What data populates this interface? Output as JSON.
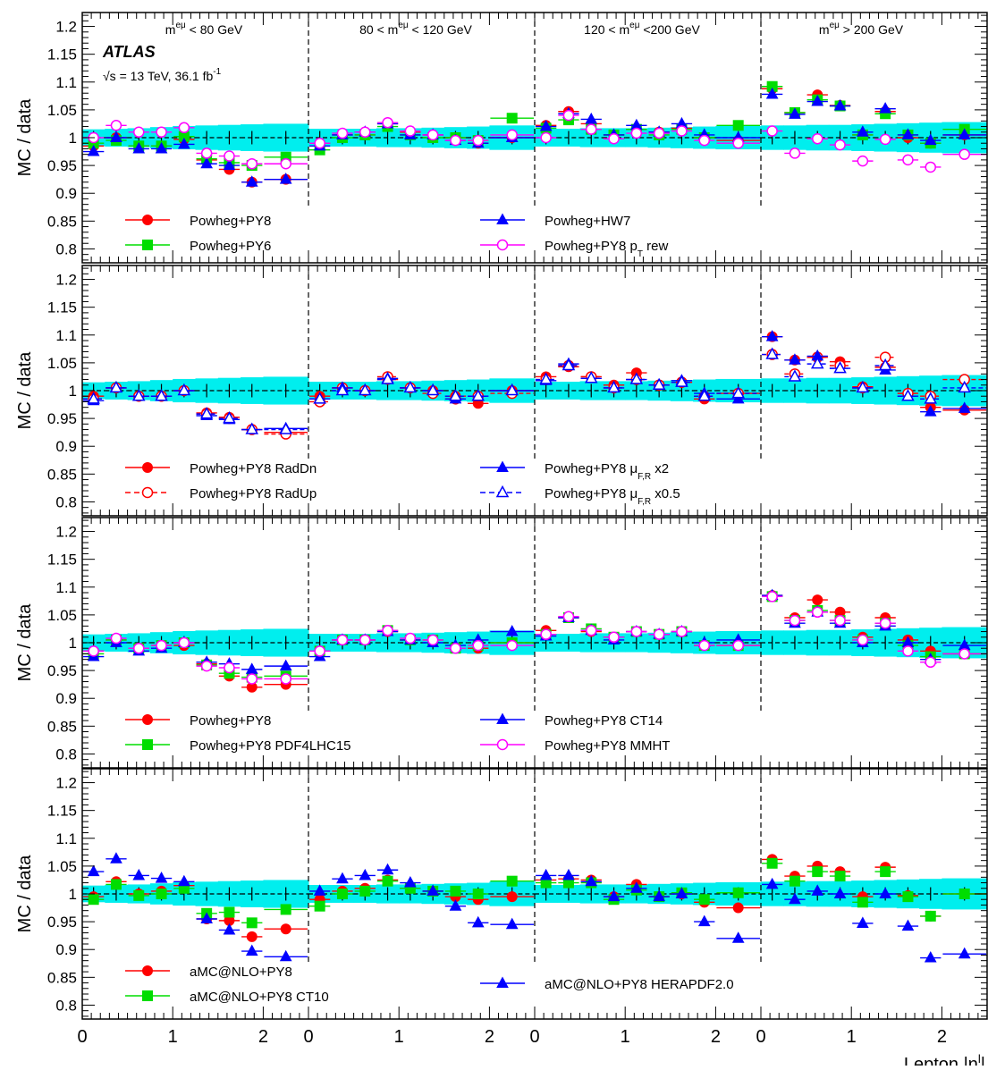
{
  "chart_data": {
    "type": "scatter",
    "ylabel": "MC / data",
    "xlabel": "Lepton |η",
    "xlabel_sup": "l",
    "xlabel_close": "|",
    "ylim": [
      0.775,
      1.225
    ],
    "yticks": [
      "0.8",
      "0.85",
      "0.9",
      "0.95",
      "1",
      "1.05",
      "1.1",
      "1.15",
      "1.2"
    ],
    "x_tick_labels": [
      "0",
      "1",
      "2"
    ],
    "eta_bins": [
      0,
      0.25,
      0.5,
      0.75,
      1.0,
      1.25,
      1.5,
      1.75,
      2.0,
      2.5
    ],
    "bins_per_region": 9,
    "n_regions": 4,
    "atlas_label": "ATLAS",
    "energy_label": "√s = 13 TeV, 36.1 fb",
    "energy_sup": "-1",
    "mass_regions": [
      {
        "pre": "m",
        "sup": "eμ",
        "post": " < 80 GeV"
      },
      {
        "pre": "80 < m",
        "sup": "eμ",
        "post": " < 120 GeV"
      },
      {
        "pre": "120 < m",
        "sup": "eμ",
        "post": " <200 GeV"
      },
      {
        "pre": "m",
        "sup": "eμ",
        "post": " > 200 GeV"
      }
    ],
    "uncertainty_band": [
      0.015,
      0.016,
      0.017,
      0.019,
      0.021,
      0.022,
      0.023,
      0.024,
      0.025,
      0.016,
      0.016,
      0.016,
      0.017,
      0.017,
      0.018,
      0.019,
      0.02,
      0.022,
      0.016,
      0.016,
      0.017,
      0.017,
      0.017,
      0.018,
      0.019,
      0.02,
      0.021,
      0.022,
      0.022,
      0.023,
      0.023,
      0.024,
      0.025,
      0.026,
      0.027,
      0.028
    ],
    "panels": [
      {
        "series": [
          {
            "name": "Powheg+PY8",
            "color": "#ff0000",
            "marker": "circle-filled",
            "values": [
              0.985,
              1.0,
              0.985,
              0.985,
              0.997,
              0.96,
              0.943,
              0.92,
              0.925,
              0.99,
              1.005,
              1.005,
              1.025,
              1.01,
              1.005,
              1.0,
              0.99,
              1.0,
              1.022,
              1.047,
              1.025,
              1.005,
              1.015,
              1.01,
              1.017,
              1.0,
              0.995,
              1.088,
              1.045,
              1.077,
              1.058,
              1.005,
              1.047,
              1.0,
              0.99,
              1.005
            ]
          },
          {
            "name": "Powheg+PY6",
            "color": "#00dd00",
            "marker": "square-filled",
            "values": [
              0.99,
              0.995,
              0.985,
              0.985,
              1.002,
              0.962,
              0.955,
              0.95,
              0.965,
              0.978,
              1.0,
              1.005,
              1.02,
              1.005,
              1.0,
              1.0,
              0.995,
              1.035,
              1.017,
              1.032,
              1.015,
              1.005,
              1.015,
              1.005,
              1.015,
              1.0,
              1.022,
              1.092,
              1.045,
              1.068,
              1.057,
              1.005,
              1.043,
              1.005,
              0.99,
              1.015
            ]
          },
          {
            "name": "Powheg+HW7",
            "color": "#0000ff",
            "marker": "triangle-filled",
            "values": [
              0.975,
              1.0,
              0.98,
              0.98,
              0.988,
              0.953,
              0.95,
              0.92,
              0.925,
              0.985,
              1.005,
              1.01,
              1.025,
              1.005,
              1.005,
              0.995,
              0.99,
              1.0,
              1.02,
              1.043,
              1.033,
              1.005,
              1.022,
              1.01,
              1.025,
              1.005,
              1.0,
              1.078,
              1.042,
              1.065,
              1.057,
              1.01,
              1.052,
              1.005,
              0.995,
              1.005
            ]
          },
          {
            "name": "Powheg+PY8 p",
            "name_sub": "T",
            "name_post": " rew",
            "color": "#ff00ff",
            "marker": "circle-open",
            "values": [
              1.0,
              1.022,
              1.01,
              1.01,
              1.018,
              0.972,
              0.967,
              0.953,
              0.953,
              0.99,
              1.008,
              1.01,
              1.027,
              1.012,
              1.005,
              0.995,
              0.995,
              1.005,
              1.0,
              1.04,
              1.015,
              0.998,
              1.008,
              1.008,
              1.012,
              0.995,
              0.99,
              1.012,
              0.972,
              0.998,
              0.987,
              0.958,
              0.997,
              0.96,
              0.947,
              0.97
            ]
          }
        ],
        "legend": [
          {
            "series": 0,
            "col": 0,
            "row": 0
          },
          {
            "series": 1,
            "col": 0,
            "row": 1
          },
          {
            "series": 2,
            "col": 1,
            "row": 0
          },
          {
            "series": 3,
            "col": 1,
            "row": 1
          }
        ]
      },
      {
        "series": [
          {
            "name": "Powheg+PY8 RadDn",
            "color": "#ff0000",
            "marker": "circle-filled",
            "values": [
              0.99,
              1.005,
              0.99,
              0.99,
              1.0,
              0.96,
              0.952,
              0.93,
              0.925,
              0.99,
              1.005,
              1.0,
              1.02,
              1.005,
              1.0,
              0.99,
              0.977,
              1.0,
              1.025,
              1.043,
              1.025,
              1.01,
              1.032,
              1.01,
              1.015,
              0.985,
              0.995,
              1.097,
              1.055,
              1.06,
              1.052,
              1.007,
              1.042,
              0.995,
              0.97,
              0.965
            ]
          },
          {
            "name": "Powheg+PY8 RadUp",
            "color": "#ff0000",
            "marker": "circle-open",
            "dashed": true,
            "values": [
              0.985,
              1.005,
              0.99,
              0.99,
              1.0,
              0.958,
              0.95,
              0.93,
              0.922,
              0.98,
              1.005,
              1.0,
              1.025,
              1.005,
              0.995,
              0.985,
              0.99,
              0.995,
              1.02,
              1.045,
              1.025,
              1.005,
              1.02,
              1.01,
              1.015,
              0.99,
              0.995,
              1.065,
              1.03,
              1.06,
              1.045,
              1.005,
              1.06,
              0.995,
              0.99,
              1.02
            ]
          },
          {
            "name": "Powheg+PY8 μ",
            "name_sub": "F,R",
            "name_post": " x2",
            "color": "#0000ff",
            "marker": "triangle-filled",
            "values": [
              0.982,
              1.005,
              0.99,
              0.99,
              1.0,
              0.955,
              0.948,
              0.93,
              0.932,
              0.985,
              1.005,
              1.0,
              1.022,
              1.005,
              1.0,
              0.985,
              0.99,
              1.0,
              1.018,
              1.048,
              1.022,
              1.005,
              1.02,
              1.01,
              1.018,
              0.995,
              0.985,
              1.097,
              1.055,
              1.062,
              1.04,
              1.005,
              1.037,
              0.99,
              0.962,
              0.968
            ]
          },
          {
            "name": "Powheg+PY8 μ",
            "name_sub": "F,R",
            "name_post": " x0.5",
            "color": "#0000ff",
            "marker": "triangle-open",
            "dashed": true,
            "values": [
              0.985,
              1.005,
              0.99,
              0.99,
              1.0,
              0.958,
              0.95,
              0.93,
              0.93,
              0.985,
              1.0,
              1.0,
              1.02,
              1.005,
              1.0,
              0.99,
              0.99,
              1.0,
              1.02,
              1.045,
              1.022,
              1.005,
              1.02,
              1.01,
              1.015,
              0.99,
              0.995,
              1.065,
              1.025,
              1.048,
              1.04,
              1.005,
              1.045,
              0.99,
              0.985,
              1.005
            ]
          }
        ],
        "legend": [
          {
            "series": 0,
            "col": 0,
            "row": 0
          },
          {
            "series": 1,
            "col": 0,
            "row": 1
          },
          {
            "series": 2,
            "col": 1,
            "row": 0
          },
          {
            "series": 3,
            "col": 1,
            "row": 1
          }
        ]
      },
      {
        "series": [
          {
            "name": "Powheg+PY8",
            "color": "#ff0000",
            "marker": "circle-filled",
            "values": [
              0.985,
              1.005,
              0.99,
              0.995,
              0.995,
              0.962,
              0.94,
              0.92,
              0.925,
              0.985,
              1.005,
              1.005,
              1.02,
              1.005,
              1.005,
              0.99,
              0.99,
              1.0,
              1.022,
              1.045,
              1.02,
              1.01,
              1.02,
              1.015,
              1.02,
              0.995,
              0.995,
              1.085,
              1.045,
              1.077,
              1.055,
              1.01,
              1.045,
              1.005,
              0.985,
              0.98
            ]
          },
          {
            "name": "Powheg+PY8 PDF4LHC15",
            "color": "#00dd00",
            "marker": "square-filled",
            "values": [
              0.98,
              1.005,
              0.99,
              0.995,
              1.0,
              0.96,
              0.945,
              0.938,
              0.94,
              0.985,
              1.005,
              1.005,
              1.022,
              1.005,
              1.005,
              0.99,
              0.995,
              1.0,
              1.015,
              1.045,
              1.025,
              1.01,
              1.02,
              1.015,
              1.02,
              0.995,
              0.995,
              1.083,
              1.04,
              1.058,
              1.04,
              1.005,
              1.035,
              0.995,
              0.975,
              0.98
            ]
          },
          {
            "name": "Powheg+PY8 CT14",
            "color": "#0000ff",
            "marker": "triangle-filled",
            "values": [
              0.975,
              1.0,
              0.985,
              0.99,
              1.0,
              0.965,
              0.962,
              0.952,
              0.958,
              0.975,
              1.005,
              1.005,
              1.02,
              1.005,
              1.0,
              0.995,
              1.005,
              1.02,
              1.012,
              1.045,
              1.022,
              1.005,
              1.02,
              1.015,
              1.02,
              1.0,
              1.005,
              1.085,
              1.035,
              1.055,
              1.035,
              1.0,
              1.03,
              1.0,
              0.97,
              0.995
            ]
          },
          {
            "name": "Powheg+PY8 MMHT",
            "color": "#ff00ff",
            "marker": "circle-open",
            "values": [
              0.985,
              1.008,
              0.99,
              0.995,
              1.0,
              0.958,
              0.955,
              0.935,
              0.935,
              0.985,
              1.005,
              1.005,
              1.022,
              1.008,
              1.005,
              0.99,
              0.995,
              0.995,
              1.015,
              1.047,
              1.022,
              1.01,
              1.02,
              1.015,
              1.02,
              0.995,
              0.995,
              1.083,
              1.04,
              1.055,
              1.04,
              1.005,
              1.035,
              0.985,
              0.965,
              0.98
            ]
          }
        ],
        "legend": [
          {
            "series": 0,
            "col": 0,
            "row": 0
          },
          {
            "series": 1,
            "col": 0,
            "row": 1
          },
          {
            "series": 2,
            "col": 1,
            "row": 0
          },
          {
            "series": 3,
            "col": 1,
            "row": 1
          }
        ]
      },
      {
        "series": [
          {
            "name": "aMC@NLO+PY8",
            "color": "#ff0000",
            "marker": "circle-filled",
            "values": [
              0.995,
              1.022,
              1.0,
              1.005,
              1.015,
              0.955,
              0.952,
              0.923,
              0.937,
              0.99,
              1.005,
              1.01,
              1.025,
              1.01,
              1.005,
              0.995,
              0.99,
              0.995,
              1.025,
              1.027,
              1.025,
              0.995,
              1.017,
              0.995,
              1.0,
              0.985,
              0.975,
              1.062,
              1.032,
              1.05,
              1.04,
              0.995,
              1.048,
              0.997,
              0.96,
              1.0
            ]
          },
          {
            "name": "aMC@NLO+PY8 CT10",
            "color": "#00dd00",
            "marker": "square-filled",
            "values": [
              0.99,
              1.017,
              0.997,
              1.0,
              1.01,
              0.965,
              0.967,
              0.948,
              0.972,
              0.978,
              1.0,
              1.005,
              1.023,
              1.01,
              1.005,
              1.005,
              1.0,
              1.023,
              1.02,
              1.02,
              1.02,
              0.99,
              1.007,
              0.995,
              1.002,
              0.99,
              1.002,
              1.055,
              1.023,
              1.04,
              1.032,
              0.985,
              1.04,
              0.995,
              0.96,
              1.0
            ]
          },
          {
            "name": "aMC@NLO+PY8 HERAPDF2.0",
            "color": "#0000ff",
            "marker": "triangle-filled",
            "values": [
              1.04,
              1.063,
              1.033,
              1.028,
              1.022,
              0.955,
              0.935,
              0.897,
              0.887,
              1.005,
              1.027,
              1.033,
              1.043,
              1.02,
              1.005,
              0.978,
              0.948,
              0.945,
              1.033,
              1.033,
              1.022,
              0.995,
              1.01,
              0.995,
              1.0,
              0.95,
              0.92,
              1.017,
              0.99,
              1.005,
              1.0,
              0.947,
              1.0,
              0.942,
              0.885,
              0.892
            ]
          }
        ],
        "legend": [
          {
            "series": 0,
            "col": 0,
            "row": 0
          },
          {
            "series": 1,
            "col": 0,
            "row": 1
          },
          {
            "series": 2,
            "col": 1,
            "row": 0.5
          }
        ]
      }
    ]
  }
}
